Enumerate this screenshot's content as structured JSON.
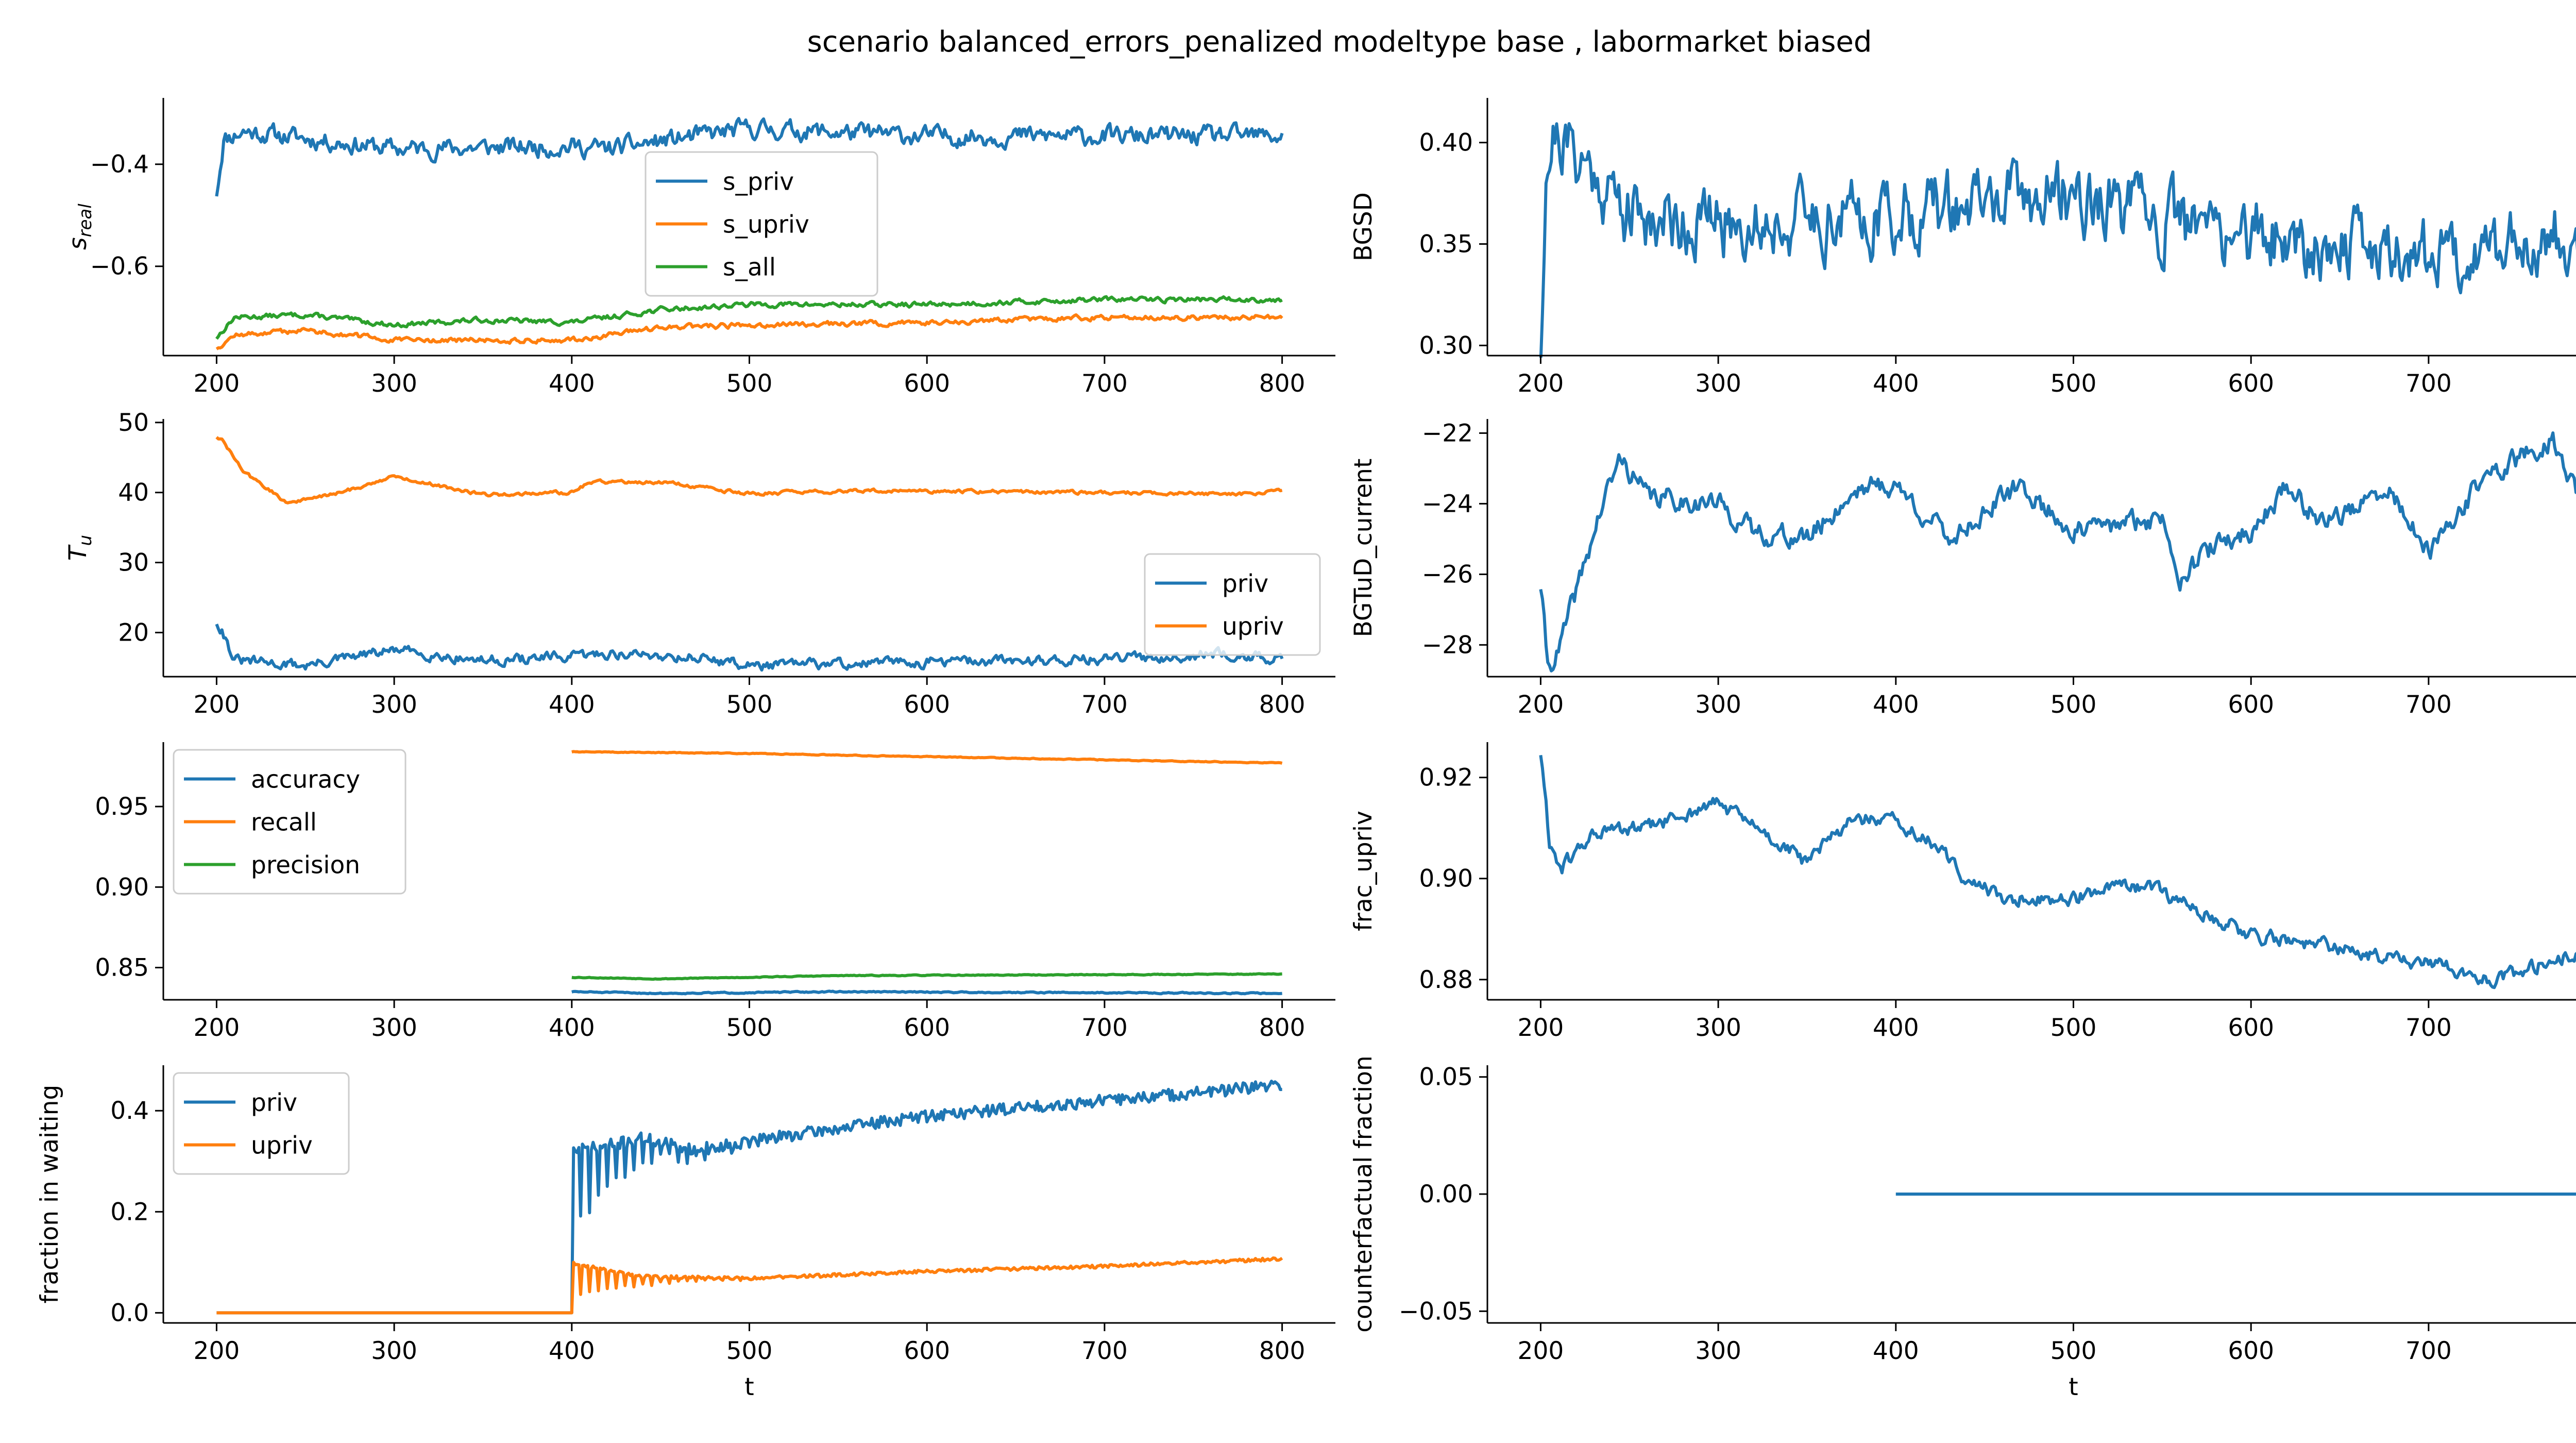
{
  "title": "scenario balanced_errors_penalized modeltype base , labormarket biased",
  "colors": {
    "blue": "#1f77b4",
    "orange": "#ff7f0e",
    "green": "#2ca02c"
  },
  "chart_data": [
    {
      "id": "s_real",
      "type": "line",
      "ylabel": "s_real",
      "ylabel_base": "s",
      "ylabel_sub": "real",
      "xlabel": "",
      "xlim": [
        170,
        830
      ],
      "ylim": [
        -0.775,
        -0.27
      ],
      "xticks": [
        200,
        300,
        400,
        500,
        600,
        700,
        800
      ],
      "yticks": [
        -0.6,
        -0.4
      ],
      "ytick_labels": [
        "−0.6",
        "−0.4"
      ],
      "legend_position": "upper-center",
      "series": [
        {
          "name": "s_priv",
          "color": "#1f77b4",
          "x_start": 200,
          "x_end": 800,
          "generator": "walk",
          "keys": [
            [
              200,
              -0.455
            ],
            [
              204,
              -0.35
            ],
            [
              215,
              -0.335
            ],
            [
              300,
              -0.37
            ],
            [
              400,
              -0.365
            ],
            [
              420,
              -0.37
            ],
            [
              500,
              -0.33
            ],
            [
              600,
              -0.345
            ],
            [
              700,
              -0.345
            ],
            [
              800,
              -0.345
            ]
          ],
          "noise": 0.015,
          "seed": 11
        },
        {
          "name": "s_upriv",
          "color": "#ff7f0e",
          "x_start": 200,
          "x_end": 800,
          "generator": "walk",
          "keys": [
            [
              200,
              -0.76
            ],
            [
              210,
              -0.735
            ],
            [
              250,
              -0.725
            ],
            [
              300,
              -0.745
            ],
            [
              400,
              -0.745
            ],
            [
              450,
              -0.72
            ],
            [
              500,
              -0.715
            ],
            [
              600,
              -0.71
            ],
            [
              700,
              -0.7
            ],
            [
              800,
              -0.7
            ]
          ],
          "noise": 0.004,
          "seed": 12
        },
        {
          "name": "s_all",
          "color": "#2ca02c",
          "x_start": 200,
          "x_end": 800,
          "generator": "walk",
          "keys": [
            [
              200,
              -0.74
            ],
            [
              210,
              -0.7
            ],
            [
              250,
              -0.695
            ],
            [
              300,
              -0.715
            ],
            [
              350,
              -0.705
            ],
            [
              400,
              -0.71
            ],
            [
              450,
              -0.685
            ],
            [
              500,
              -0.675
            ],
            [
              600,
              -0.675
            ],
            [
              700,
              -0.665
            ],
            [
              800,
              -0.665
            ]
          ],
          "noise": 0.004,
          "seed": 13
        }
      ]
    },
    {
      "id": "BGSD",
      "type": "line",
      "ylabel": "BGSD",
      "xlabel": "",
      "xlim": [
        170,
        830
      ],
      "ylim": [
        0.295,
        0.422
      ],
      "xticks": [
        200,
        300,
        400,
        500,
        600,
        700,
        800
      ],
      "yticks": [
        0.3,
        0.35,
        0.4
      ],
      "ytick_labels": [
        "0.30",
        "0.35",
        "0.40"
      ],
      "series": [
        {
          "name": "",
          "color": "#1f77b4",
          "x_start": 200,
          "x_end": 800,
          "generator": "walk",
          "keys": [
            [
              200,
              0.298
            ],
            [
              203,
              0.39
            ],
            [
              208,
              0.405
            ],
            [
              230,
              0.385
            ],
            [
              250,
              0.365
            ],
            [
              300,
              0.36
            ],
            [
              400,
              0.365
            ],
            [
              500,
              0.375
            ],
            [
              550,
              0.36
            ],
            [
              600,
              0.355
            ],
            [
              700,
              0.345
            ],
            [
              750,
              0.35
            ],
            [
              800,
              0.36
            ]
          ],
          "noise": 0.014,
          "seed": 21
        }
      ]
    },
    {
      "id": "T_u",
      "type": "line",
      "ylabel": "T_u",
      "ylabel_base": "T",
      "ylabel_sub": "u",
      "xlabel": "",
      "xlim": [
        170,
        830
      ],
      "ylim": [
        13.7,
        50.5
      ],
      "xticks": [
        200,
        300,
        400,
        500,
        600,
        700,
        800
      ],
      "yticks": [
        20,
        30,
        40,
        50
      ],
      "ytick_labels": [
        "20",
        "30",
        "40",
        "50"
      ],
      "legend_position": "center-right",
      "series": [
        {
          "name": "priv",
          "color": "#1f77b4",
          "x_start": 200,
          "x_end": 800,
          "generator": "walk",
          "keys": [
            [
              200,
              21.5
            ],
            [
              203,
              20.5
            ],
            [
              210,
              16
            ],
            [
              250,
              15.3
            ],
            [
              300,
              17.5
            ],
            [
              350,
              16
            ],
            [
              400,
              16.5
            ],
            [
              420,
              17
            ],
            [
              470,
              16.5
            ],
            [
              500,
              15.3
            ],
            [
              600,
              15.8
            ],
            [
              700,
              16.2
            ],
            [
              770,
              17
            ],
            [
              800,
              16
            ]
          ],
          "noise": 0.6,
          "seed": 31
        },
        {
          "name": "upriv",
          "color": "#ff7f0e",
          "x_start": 200,
          "x_end": 800,
          "generator": "walk",
          "keys": [
            [
              200,
              48
            ],
            [
              203,
              47.5
            ],
            [
              215,
              43
            ],
            [
              240,
              38.5
            ],
            [
              270,
              40
            ],
            [
              300,
              42.3
            ],
            [
              350,
              39.7
            ],
            [
              400,
              40
            ],
            [
              410,
              41.5
            ],
            [
              450,
              41.5
            ],
            [
              500,
              39.8
            ],
            [
              550,
              40.2
            ],
            [
              600,
              40.2
            ],
            [
              700,
              40
            ],
            [
              780,
              39.8
            ],
            [
              800,
              40.2
            ]
          ],
          "noise": 0.2,
          "seed": 32
        }
      ]
    },
    {
      "id": "BGTuD_current",
      "type": "line",
      "ylabel": "BGTuD_current",
      "xlabel": "",
      "xlim": [
        170,
        830
      ],
      "ylim": [
        -28.9,
        -21.6
      ],
      "xticks": [
        200,
        300,
        400,
        500,
        600,
        700,
        800
      ],
      "yticks": [
        -28,
        -26,
        -24,
        -22
      ],
      "ytick_labels": [
        "−28",
        "−26",
        "−24",
        "−22"
      ],
      "series": [
        {
          "name": "",
          "color": "#1f77b4",
          "x_start": 200,
          "x_end": 800,
          "generator": "walk",
          "keys": [
            [
              200,
              -26.3
            ],
            [
              204,
              -28.6
            ],
            [
              210,
              -28.2
            ],
            [
              220,
              -26.5
            ],
            [
              235,
              -24
            ],
            [
              245,
              -22.7
            ],
            [
              260,
              -23.8
            ],
            [
              300,
              -24
            ],
            [
              320,
              -24.8
            ],
            [
              350,
              -25
            ],
            [
              380,
              -23.5
            ],
            [
              400,
              -23.5
            ],
            [
              430,
              -25
            ],
            [
              470,
              -23.5
            ],
            [
              500,
              -24.8
            ],
            [
              550,
              -24.4
            ],
            [
              560,
              -26
            ],
            [
              580,
              -25.2
            ],
            [
              600,
              -24.8
            ],
            [
              620,
              -23.5
            ],
            [
              640,
              -24.5
            ],
            [
              680,
              -23.7
            ],
            [
              700,
              -25.5
            ],
            [
              730,
              -23.3
            ],
            [
              770,
              -22.2
            ],
            [
              790,
              -24.5
            ],
            [
              800,
              -24.4
            ]
          ],
          "noise": 0.25,
          "seed": 41
        }
      ]
    },
    {
      "id": "metrics",
      "type": "line",
      "ylabel": "",
      "xlabel": "",
      "xlim": [
        170,
        830
      ],
      "ylim": [
        0.83,
        0.99
      ],
      "xticks": [
        200,
        300,
        400,
        500,
        600,
        700,
        800
      ],
      "yticks": [
        0.85,
        0.9,
        0.95
      ],
      "ytick_labels": [
        "0.85",
        "0.90",
        "0.95"
      ],
      "legend_position": "upper-left",
      "series": [
        {
          "name": "accuracy",
          "color": "#1f77b4",
          "x_start": 400,
          "x_end": 800,
          "generator": "walk",
          "keys": [
            [
              400,
              0.835
            ],
            [
              450,
              0.834
            ],
            [
              550,
              0.835
            ],
            [
              800,
              0.834
            ]
          ],
          "noise": 0.0003,
          "seed": 51
        },
        {
          "name": "recall",
          "color": "#ff7f0e",
          "x_start": 400,
          "x_end": 800,
          "generator": "walk",
          "keys": [
            [
              400,
              0.984
            ],
            [
              500,
              0.983
            ],
            [
              600,
              0.981
            ],
            [
              700,
              0.979
            ],
            [
              800,
              0.977
            ]
          ],
          "noise": 0.0002,
          "seed": 52
        },
        {
          "name": "precision",
          "color": "#2ca02c",
          "x_start": 400,
          "x_end": 800,
          "generator": "walk",
          "keys": [
            [
              400,
              0.844
            ],
            [
              450,
              0.843
            ],
            [
              550,
              0.845
            ],
            [
              800,
              0.846
            ]
          ],
          "noise": 0.0002,
          "seed": 53
        }
      ]
    },
    {
      "id": "frac_upriv",
      "type": "line",
      "ylabel": "frac_upriv",
      "xlabel": "",
      "xlim": [
        170,
        830
      ],
      "ylim": [
        0.876,
        0.927
      ],
      "xticks": [
        200,
        300,
        400,
        500,
        600,
        700,
        800
      ],
      "yticks": [
        0.88,
        0.9,
        0.92
      ],
      "ytick_labels": [
        "0.88",
        "0.90",
        "0.92"
      ],
      "series": [
        {
          "name": "",
          "color": "#1f77b4",
          "x_start": 200,
          "x_end": 800,
          "generator": "walk",
          "keys": [
            [
              200,
              0.925
            ],
            [
              205,
              0.907
            ],
            [
              212,
              0.902
            ],
            [
              230,
              0.909
            ],
            [
              260,
              0.91
            ],
            [
              300,
              0.915
            ],
            [
              330,
              0.908
            ],
            [
              350,
              0.903
            ],
            [
              375,
              0.912
            ],
            [
              400,
              0.911
            ],
            [
              420,
              0.907
            ],
            [
              440,
              0.9
            ],
            [
              460,
              0.896
            ],
            [
              500,
              0.896
            ],
            [
              520,
              0.898
            ],
            [
              545,
              0.898
            ],
            [
              600,
              0.889
            ],
            [
              650,
              0.886
            ],
            [
              700,
              0.883
            ],
            [
              740,
              0.88
            ],
            [
              770,
              0.884
            ],
            [
              800,
              0.887
            ]
          ],
          "noise": 0.0012,
          "seed": 61
        }
      ]
    },
    {
      "id": "waiting",
      "type": "line",
      "ylabel": "fraction in waiting",
      "xlabel": "t",
      "xlim": [
        170,
        830
      ],
      "ylim": [
        -0.02,
        0.49
      ],
      "xticks": [
        200,
        300,
        400,
        500,
        600,
        700,
        800
      ],
      "yticks": [
        0.0,
        0.2,
        0.4
      ],
      "ytick_labels": [
        "0.0",
        "0.2",
        "0.4"
      ],
      "legend_position": "upper-left",
      "series": [
        {
          "name": "priv",
          "color": "#1f77b4",
          "x_start": 200,
          "x_end": 800,
          "generator": "osc",
          "zero_until": 400,
          "base_keys": [
            [
              400,
              0.3
            ],
            [
              440,
              0.34
            ],
            [
              470,
              0.32
            ],
            [
              500,
              0.34
            ],
            [
              600,
              0.39
            ],
            [
              700,
              0.42
            ],
            [
              800,
              0.45
            ]
          ],
          "amp": 0.14,
          "decay": 30,
          "period": 5,
          "noise": 0.012,
          "seed": 71
        },
        {
          "name": "upriv",
          "color": "#ff7f0e",
          "x_start": 200,
          "x_end": 800,
          "generator": "osc",
          "zero_until": 400,
          "base_keys": [
            [
              400,
              0.09
            ],
            [
              440,
              0.07
            ],
            [
              500,
              0.068
            ],
            [
              600,
              0.082
            ],
            [
              700,
              0.092
            ],
            [
              800,
              0.107
            ]
          ],
          "amp": 0.06,
          "decay": 30,
          "period": 5,
          "noise": 0.003,
          "seed": 72
        }
      ]
    },
    {
      "id": "counterfactual",
      "type": "line",
      "ylabel": "counterfactual fraction",
      "xlabel": "t",
      "xlim": [
        170,
        830
      ],
      "ylim": [
        -0.055,
        0.055
      ],
      "xticks": [
        200,
        300,
        400,
        500,
        600,
        700,
        800
      ],
      "yticks": [
        -0.05,
        0.0,
        0.05
      ],
      "ytick_labels": [
        "−0.05",
        "0.00",
        "0.05"
      ],
      "series": [
        {
          "name": "",
          "color": "#1f77b4",
          "x_start": 400,
          "x_end": 800,
          "generator": "walk",
          "keys": [
            [
              400,
              0.0
            ],
            [
              800,
              0.0
            ]
          ],
          "noise": 0.0,
          "seed": 81
        }
      ]
    }
  ]
}
